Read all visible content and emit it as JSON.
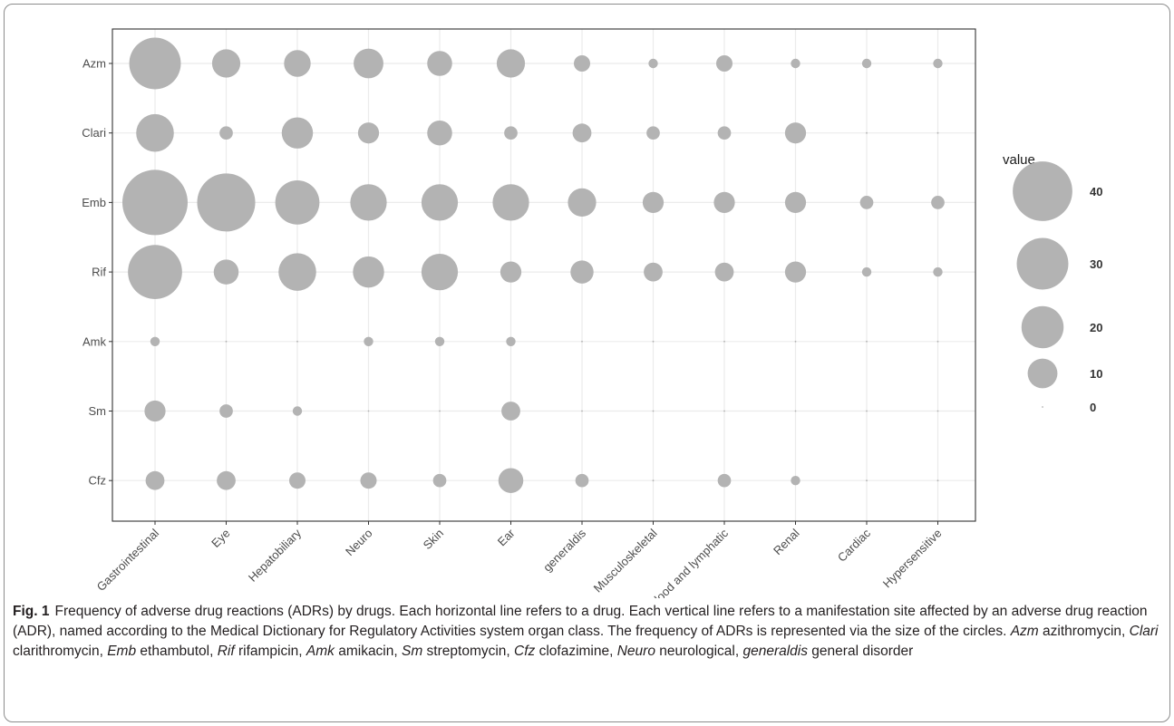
{
  "chart_data": {
    "type": "scatter",
    "title": "",
    "xlabel": "",
    "ylabel": "",
    "x_categories": [
      "Gastrointestinal",
      "Eye",
      "Hepatobiliary",
      "Neuro",
      "Skin",
      "Ear",
      "generaldis",
      "Musculoskeletal",
      "Blood and lymphatic",
      "Renal",
      "Cardiac",
      "Hypersensitive"
    ],
    "y_categories": [
      "Azm",
      "Clari",
      "Emb",
      "Rif",
      "Amk",
      "Sm",
      "Cfz"
    ],
    "values": [
      [
        30,
        9,
        8,
        10,
        7,
        9,
        3,
        1,
        3,
        1,
        1,
        1
      ],
      [
        16,
        2,
        11,
        5,
        7,
        2,
        4,
        2,
        2,
        5,
        0,
        0
      ],
      [
        48,
        38,
        22,
        15,
        15,
        15,
        9,
        5,
        5,
        5,
        2,
        2
      ],
      [
        33,
        7,
        16,
        11,
        15,
        5,
        6,
        4,
        4,
        5,
        1,
        1
      ],
      [
        1,
        0,
        0,
        1,
        1,
        1,
        0,
        0,
        0,
        0,
        0,
        0
      ],
      [
        5,
        2,
        1,
        0,
        0,
        4,
        0,
        0,
        0,
        0,
        0,
        0
      ],
      [
        4,
        4,
        3,
        3,
        2,
        7,
        2,
        0,
        2,
        1,
        0,
        0
      ]
    ],
    "legend": {
      "title": "value",
      "position": "right",
      "entries": [
        40,
        30,
        20,
        10,
        0
      ],
      "entry_labels": [
        "40",
        "30",
        "20",
        "10",
        "0"
      ]
    },
    "grid": true,
    "colors": {
      "point": "#b3b3b3",
      "grid": "#ebebeb",
      "panel_border": "#333333",
      "tick_text": "#4d4d4d"
    }
  },
  "caption": {
    "label": "Fig. 1",
    "text_parts": [
      {
        "t": "Frequency of adverse drug reactions (ADRs) by drugs. Each horizontal line refers to a drug. Each vertical line refers to a manifestation site affected by an adverse drug reaction (ADR), named according to the Medical Dictionary for Regulatory Activities system organ class. The frequency of ADRs is represented via the size of the circles. ",
        "i": false
      },
      {
        "t": "Azm",
        "i": true
      },
      {
        "t": " azithromycin, ",
        "i": false
      },
      {
        "t": "Clari",
        "i": true
      },
      {
        "t": " clarithromycin, ",
        "i": false
      },
      {
        "t": "Emb",
        "i": true
      },
      {
        "t": " ethambutol, ",
        "i": false
      },
      {
        "t": "Rif",
        "i": true
      },
      {
        "t": " rifampicin, ",
        "i": false
      },
      {
        "t": "Amk",
        "i": true
      },
      {
        "t": " amikacin, ",
        "i": false
      },
      {
        "t": "Sm",
        "i": true
      },
      {
        "t": " streptomycin, ",
        "i": false
      },
      {
        "t": "Cfz",
        "i": true
      },
      {
        "t": " clofazimine, ",
        "i": false
      },
      {
        "t": "Neuro",
        "i": true
      },
      {
        "t": " neurological, ",
        "i": false
      },
      {
        "t": "generaldis",
        "i": true
      },
      {
        "t": " general disorder",
        "i": false
      }
    ]
  }
}
